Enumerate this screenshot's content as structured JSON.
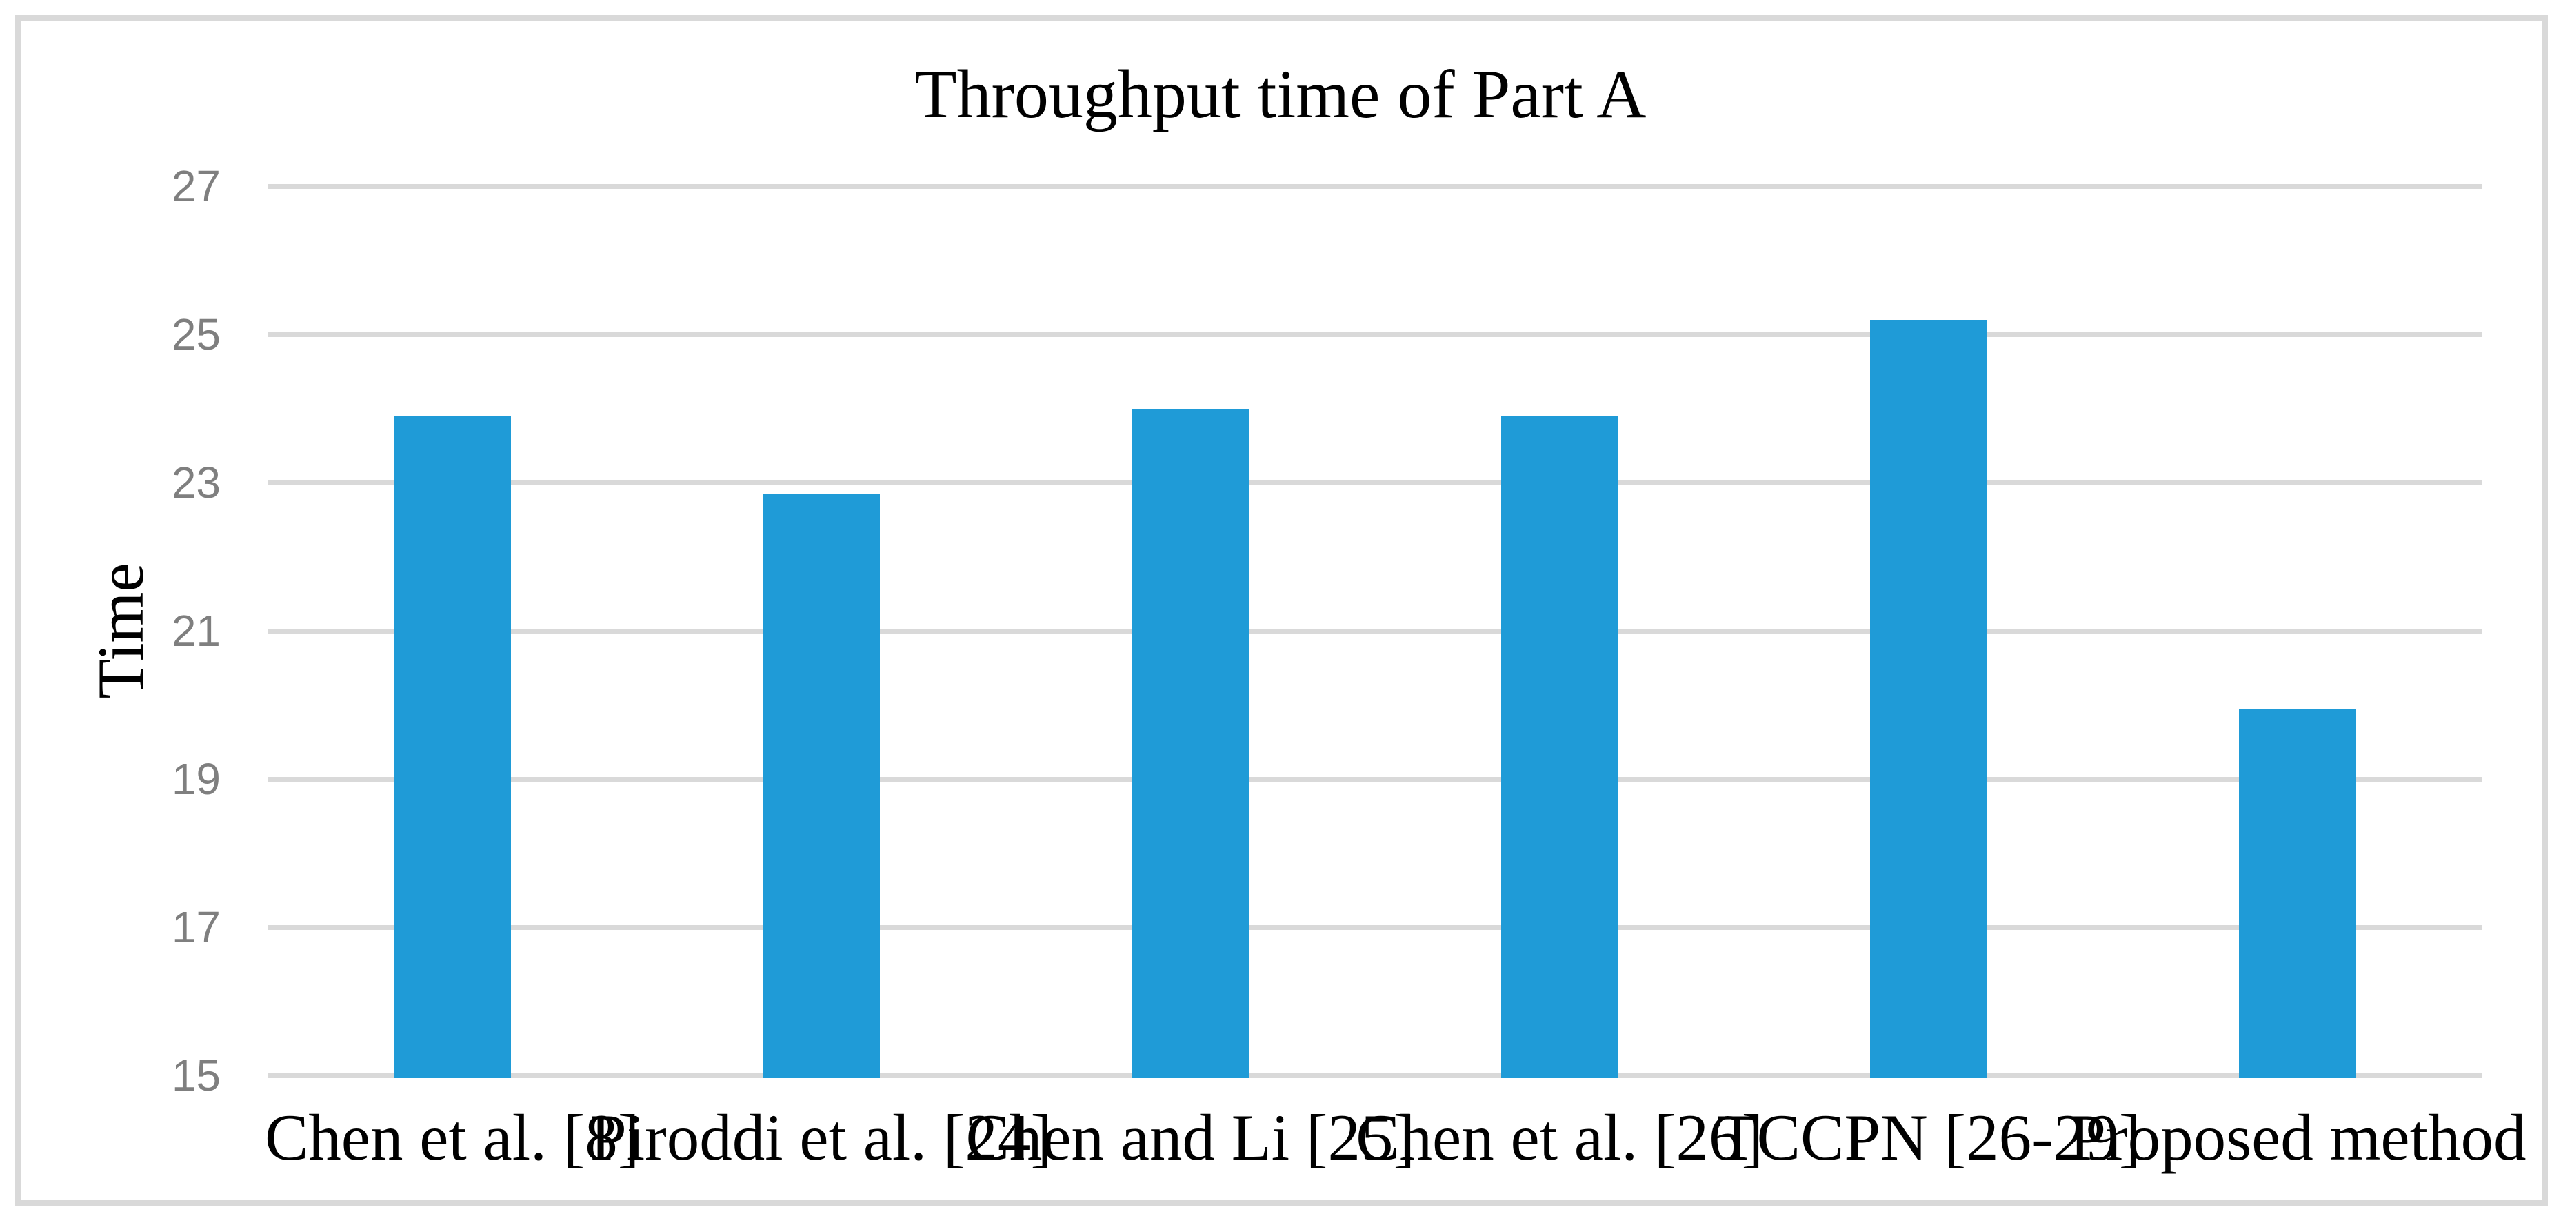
{
  "figure": {
    "title": "Throughput time of Part A"
  },
  "chart_data": {
    "type": "bar",
    "title": "Throughput time of Part A",
    "categories": [
      "Chen et al. [8]",
      "Piroddi et al. [24]",
      "Chen and Li [25]",
      "Chen et al. [26]",
      "TCCPN [26-29]",
      "Proposed method"
    ],
    "values": [
      23.9,
      22.85,
      24.0,
      23.9,
      25.2,
      19.95
    ],
    "xlabel": "",
    "ylabel": "Time",
    "ylim": [
      15,
      27
    ],
    "yticks": [
      15,
      17,
      19,
      21,
      23,
      25,
      27
    ],
    "ytick_step": 2,
    "grid": true,
    "legend": "none",
    "colors": {
      "bar": "#1f9bd7",
      "gridline": "#d9d9d9",
      "figure_border": "#d9d9d9",
      "tick_label": "#7f7f7f",
      "text": "#000000",
      "background": "#ffffff"
    }
  }
}
